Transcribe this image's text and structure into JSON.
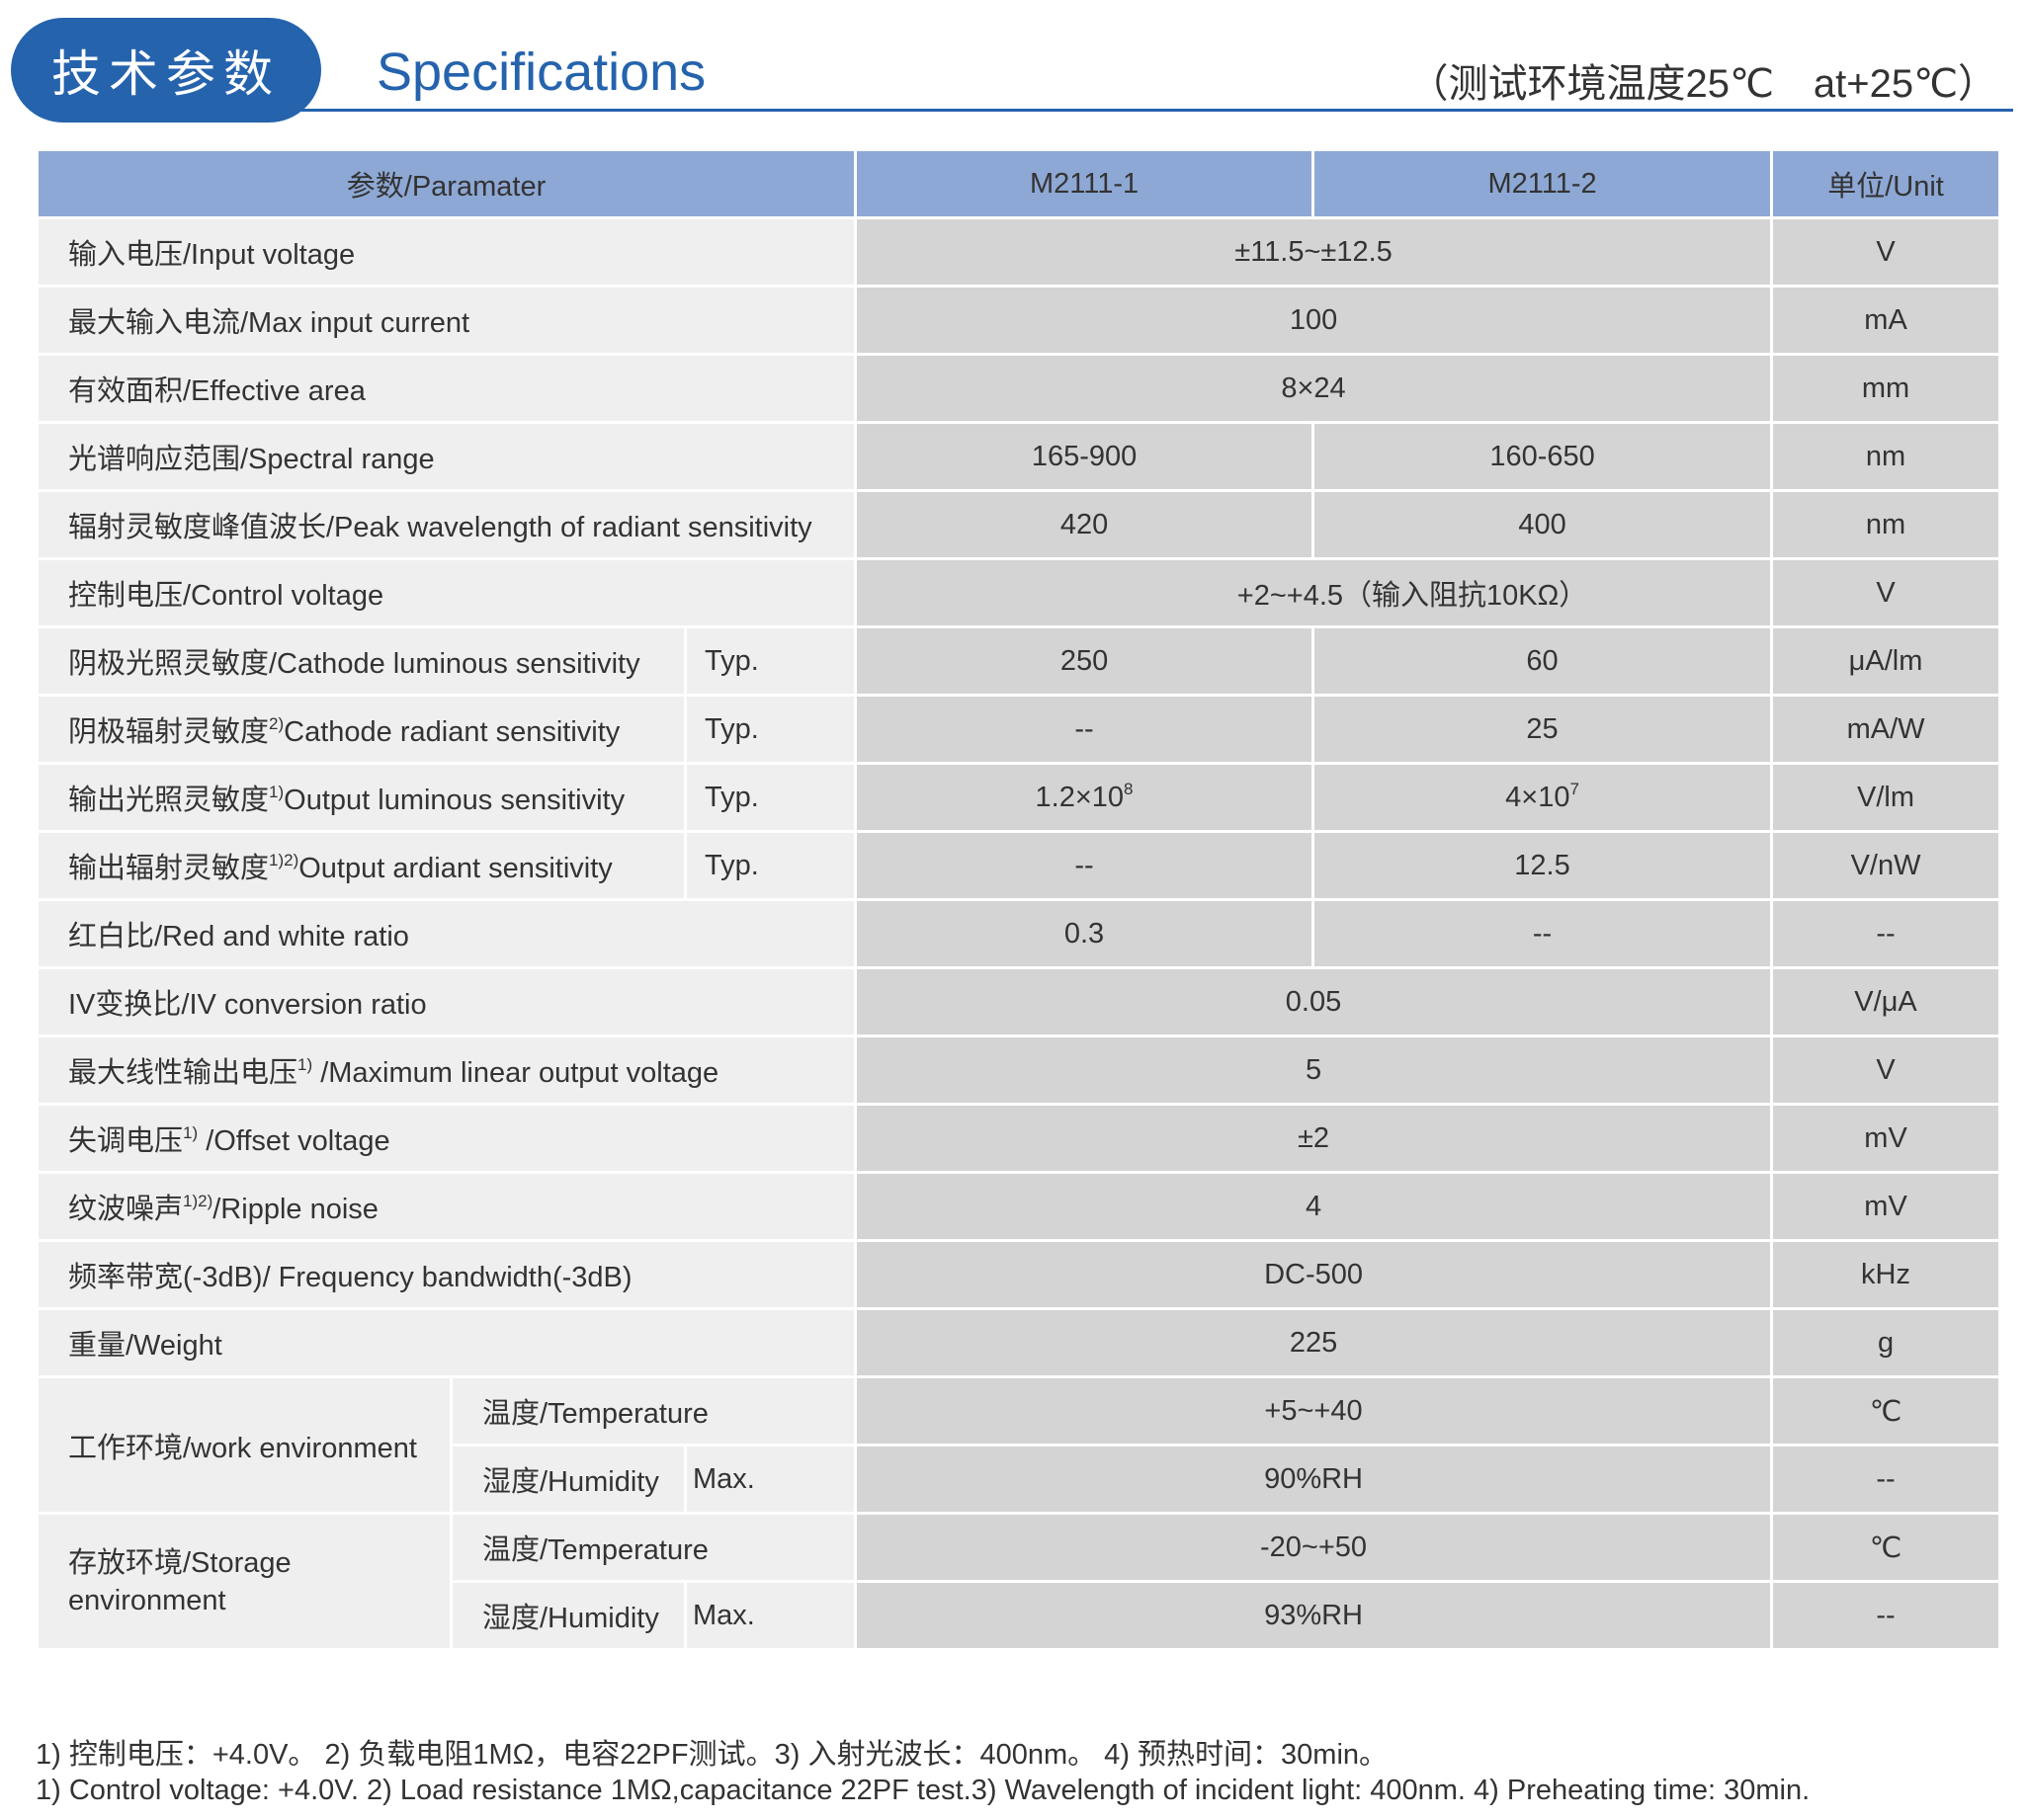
{
  "header": {
    "title_zh": "技术参数",
    "title_en": "Specifications",
    "condition": "（测试环境温度25℃　at+25℃）",
    "accent_color": "#2563ad"
  },
  "table": {
    "columns": {
      "param": "参数/Paramater",
      "m1": "M2111-1",
      "m2": "M2111-2",
      "unit": "单位/Unit"
    },
    "rows": [
      {
        "param": "输入电压/Input voltage",
        "value": "±11.5~±12.5",
        "unit": "V"
      },
      {
        "param": "最大输入电流/Max input current",
        "value": "100",
        "unit": "mA"
      },
      {
        "param": "有效面积/Effective area",
        "value": "8×24",
        "unit": "mm"
      },
      {
        "param": "光谱响应范围/Spectral range",
        "m1": "165-900",
        "m2": "160-650",
        "unit": "nm"
      },
      {
        "param": "辐射灵敏度峰值波长/Peak wavelength of radiant sensitivity",
        "m1": "420",
        "m2": "400",
        "unit": "nm"
      },
      {
        "param": "控制电压/Control voltage",
        "value": "+2~+4.5（输入阻抗10KΩ）",
        "unit": "V"
      },
      {
        "param": "阴极光照灵敏度/Cathode luminous sensitivity",
        "cond": "Typ.",
        "m1": "250",
        "m2": "60",
        "unit": "μA/lm"
      },
      {
        "param_pre": "阴极辐射灵敏度",
        "param_sup": "2)",
        "param_post": "Cathode radiant sensitivity",
        "cond": "Typ.",
        "m1": "--",
        "m2": "25",
        "unit": "mA/W"
      },
      {
        "param_pre": "输出光照灵敏度",
        "param_sup": "1)",
        "param_post": "Output luminous sensitivity",
        "cond": "Typ.",
        "m1_base": "1.2×10",
        "m1_exp": "8",
        "m2_base": "4×10",
        "m2_exp": "7",
        "unit": "V/lm"
      },
      {
        "param_pre": "输出辐射灵敏度",
        "param_sup": "1)2)",
        "param_post": "Output ardiant sensitivity",
        "cond": "Typ.",
        "m1": "--",
        "m2": "12.5",
        "unit": "V/nW"
      },
      {
        "param": "红白比/Red and white ratio",
        "m1": "0.3",
        "m2": "--",
        "unit": "--"
      },
      {
        "param": "IV变换比/IV conversion ratio",
        "value": "0.05",
        "unit": "V/μA"
      },
      {
        "param_pre": "最大线性输出电压",
        "param_sup": "1)",
        "param_post": " /Maximum linear output voltage",
        "value": "5",
        "unit": "V"
      },
      {
        "param_pre": "失调电压",
        "param_sup": "1)",
        "param_post": " /Offset voltage",
        "value": "±2",
        "unit": "mV"
      },
      {
        "param_pre": "纹波噪声",
        "param_sup": "1)2)",
        "param_post": "/Ripple noise",
        "value": "4",
        "unit": "mV"
      },
      {
        "param": "频率带宽(-3dB)/ Frequency bandwidth(-3dB)",
        "value": "DC-500",
        "unit": "kHz"
      },
      {
        "param": "重量/Weight",
        "value": "225",
        "unit": "g"
      }
    ],
    "work_env": {
      "label": "工作环境/work environment",
      "temp_label": "温度/Temperature",
      "temp_value": "+5~+40",
      "temp_unit": "℃",
      "hum_label": "湿度/Humidity",
      "hum_cond": "Max.",
      "hum_value": "90%RH",
      "hum_unit": "--"
    },
    "storage_env": {
      "label_line1": "存放环境/Storage",
      "label_line2": "environment",
      "temp_label": "温度/Temperature",
      "temp_value": "-20~+50",
      "temp_unit": "℃",
      "hum_label": "湿度/Humidity",
      "hum_cond": "Max.",
      "hum_value": "93%RH",
      "hum_unit": "--"
    }
  },
  "footnotes": {
    "zh": "1) 控制电压：+4.0V。 2) 负载电阻1MΩ，电容22PF测试。3) 入射光波长：400nm。 4) 预热时间：30min。",
    "en": "1) Control voltage: +4.0V. 2) Load resistance 1MΩ,capacitance 22PF test.3) Wavelength of incident light: 400nm. 4) Preheating time: 30min."
  }
}
